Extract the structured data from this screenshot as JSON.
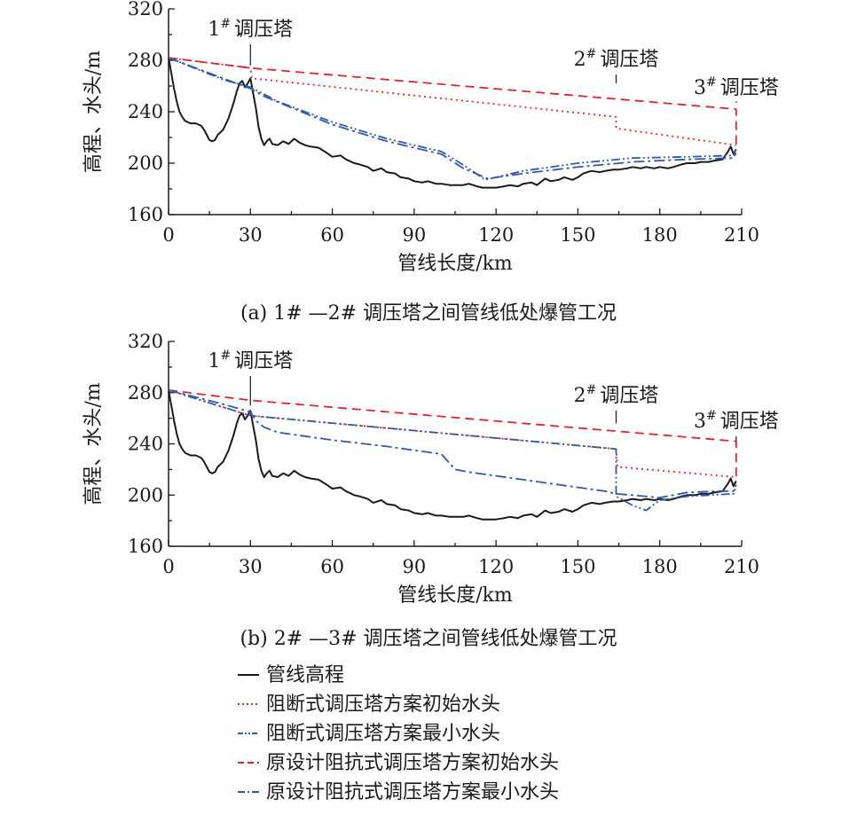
{
  "colors": {
    "elevation": "#1a1a1a",
    "red": "#e8212a",
    "blue": "#2f5aa8"
  },
  "chart_data": [
    {
      "type": "line",
      "caption": "(a) 1# —2# 调压塔之间管线低处爆管工况",
      "xlabel": "管线长度/km",
      "ylabel": "高程、水头/m",
      "xlim": [
        0,
        210
      ],
      "ylim": [
        160,
        320
      ],
      "xticks": [
        "0",
        "30",
        "60",
        "90",
        "120",
        "150",
        "180",
        "210"
      ],
      "yticks": [
        "160",
        "200",
        "240",
        "280",
        "320"
      ],
      "annotations": [
        {
          "text": "1# 调压塔",
          "num": "1",
          "label": "调压塔",
          "x": 30
        },
        {
          "text": "2# 调压塔",
          "num": "2",
          "label": "调压塔",
          "x": 164
        },
        {
          "text": "3# 调压塔",
          "num": "3",
          "label": "调压塔",
          "x": 208
        }
      ],
      "series": [
        {
          "key": "elevation",
          "style": "solid",
          "color": "#1a1a1a",
          "x": [
            0,
            1,
            2,
            3,
            4,
            5,
            6,
            8,
            10,
            12,
            13,
            14,
            15,
            16,
            17,
            18,
            20,
            22,
            24,
            25,
            26,
            27,
            28,
            29,
            30,
            31,
            32,
            33,
            34,
            35,
            36,
            37,
            38,
            40,
            42,
            44,
            46,
            48,
            50,
            52,
            55,
            58,
            60,
            63,
            65,
            68,
            70,
            73,
            75,
            78,
            80,
            83,
            85,
            88,
            90,
            93,
            95,
            98,
            100,
            103,
            105,
            108,
            110,
            113,
            115,
            118,
            120,
            123,
            125,
            128,
            130,
            133,
            135,
            138,
            140,
            143,
            145,
            148,
            150,
            152,
            155,
            158,
            160,
            163,
            165,
            168,
            170,
            173,
            175,
            178,
            180,
            183,
            185,
            188,
            190,
            193,
            195,
            198,
            200,
            203,
            205,
            206,
            207,
            208
          ],
          "y": [
            282,
            270,
            258,
            248,
            240,
            236,
            233,
            231,
            231,
            229,
            226,
            222,
            218,
            217,
            218,
            222,
            226,
            235,
            248,
            256,
            262,
            264,
            259,
            262,
            266,
            254,
            243,
            228,
            219,
            214,
            217,
            219,
            215,
            214,
            217,
            215,
            219,
            216,
            214,
            213,
            212,
            208,
            205,
            206,
            203,
            200,
            199,
            197,
            194,
            196,
            193,
            192,
            189,
            188,
            186,
            185,
            186,
            184,
            184,
            183,
            183,
            183,
            184,
            182,
            181,
            181,
            181,
            182,
            183,
            182,
            184,
            185,
            183,
            188,
            186,
            187,
            189,
            187,
            189,
            192,
            194,
            193,
            194,
            195,
            195,
            196,
            197,
            196,
            197,
            196,
            197,
            196,
            197,
            199,
            200,
            200,
            201,
            201,
            202,
            203,
            209,
            213,
            207,
            211
          ]
        },
        {
          "key": "blocking_initial",
          "style": "dotted",
          "color": "#e8212a",
          "x": [
            0,
            30,
            30.5,
            164,
            164,
            208
          ],
          "y": [
            282,
            274,
            266,
            236,
            227,
            214
          ]
        },
        {
          "key": "blocking_min",
          "style": "dashdotdot",
          "color": "#2f5aa8",
          "x": [
            0,
            20,
            30,
            32,
            40,
            60,
            80,
            100,
            110,
            116,
            130,
            150,
            170,
            190,
            207,
            208
          ],
          "y": [
            282,
            265,
            259,
            257,
            248,
            232,
            219,
            209,
            196,
            187,
            194,
            200,
            204,
            205,
            206,
            211
          ]
        },
        {
          "key": "original_initial",
          "style": "dashed",
          "color": "#e8212a",
          "x": [
            0,
            30,
            208,
            208
          ],
          "y": [
            282,
            274,
            242,
            212
          ]
        },
        {
          "key": "original_min",
          "style": "dashdot",
          "color": "#2f5aa8",
          "x": [
            0,
            20,
            30,
            35,
            60,
            80,
            100,
            108,
            117,
            130,
            150,
            170,
            190,
            207,
            208
          ],
          "y": [
            282,
            266,
            258,
            252,
            230,
            217,
            207,
            196,
            188,
            192,
            197,
            201,
            203,
            204,
            208
          ]
        }
      ]
    },
    {
      "type": "line",
      "caption": "(b) 2# —3# 调压塔之间管线低处爆管工况",
      "xlabel": "管线长度/km",
      "ylabel": "高程、水头/m",
      "xlim": [
        0,
        210
      ],
      "ylim": [
        160,
        320
      ],
      "xticks": [
        "0",
        "30",
        "60",
        "90",
        "120",
        "150",
        "180",
        "210"
      ],
      "yticks": [
        "160",
        "200",
        "240",
        "280",
        "320"
      ],
      "annotations": [
        {
          "text": "1# 调压塔",
          "num": "1",
          "label": "调压塔",
          "x": 30
        },
        {
          "text": "2# 调压塔",
          "num": "2",
          "label": "调压塔",
          "x": 164
        },
        {
          "text": "3# 调压塔",
          "num": "3",
          "label": "调压塔",
          "x": 208
        }
      ],
      "series": [
        {
          "key": "elevation",
          "style": "solid",
          "color": "#1a1a1a",
          "x": [
            0,
            1,
            2,
            3,
            4,
            5,
            6,
            8,
            10,
            12,
            13,
            14,
            15,
            16,
            17,
            18,
            20,
            22,
            24,
            25,
            26,
            27,
            28,
            29,
            30,
            31,
            32,
            33,
            34,
            35,
            36,
            37,
            38,
            40,
            42,
            44,
            46,
            48,
            50,
            52,
            55,
            58,
            60,
            63,
            65,
            68,
            70,
            73,
            75,
            78,
            80,
            83,
            85,
            88,
            90,
            93,
            95,
            98,
            100,
            103,
            105,
            108,
            110,
            113,
            115,
            118,
            120,
            123,
            125,
            128,
            130,
            133,
            135,
            138,
            140,
            143,
            145,
            148,
            150,
            152,
            155,
            158,
            160,
            163,
            165,
            168,
            170,
            173,
            175,
            178,
            180,
            183,
            185,
            188,
            190,
            193,
            195,
            198,
            200,
            203,
            205,
            206,
            207,
            208
          ],
          "y": [
            282,
            270,
            258,
            248,
            240,
            236,
            233,
            231,
            231,
            229,
            226,
            222,
            218,
            217,
            218,
            222,
            226,
            235,
            248,
            256,
            262,
            264,
            259,
            262,
            266,
            254,
            243,
            228,
            219,
            214,
            217,
            219,
            215,
            214,
            217,
            215,
            219,
            216,
            214,
            213,
            212,
            208,
            205,
            206,
            203,
            200,
            199,
            197,
            194,
            196,
            193,
            192,
            189,
            188,
            186,
            185,
            186,
            184,
            184,
            183,
            183,
            183,
            184,
            182,
            181,
            181,
            181,
            182,
            183,
            182,
            184,
            185,
            183,
            188,
            186,
            187,
            189,
            187,
            189,
            192,
            194,
            193,
            194,
            195,
            195,
            196,
            197,
            196,
            197,
            196,
            197,
            196,
            197,
            199,
            200,
            200,
            201,
            201,
            202,
            203,
            209,
            213,
            207,
            211
          ]
        },
        {
          "key": "blocking_initial",
          "style": "dotted",
          "color": "#e8212a",
          "x": [
            0,
            30,
            164,
            164.5,
            208
          ],
          "y": [
            282,
            262,
            236,
            222,
            214
          ]
        },
        {
          "key": "blocking_min",
          "style": "dashdotdot",
          "color": "#2f5aa8",
          "x": [
            0,
            30,
            164,
            164,
            170,
            175,
            180,
            190,
            207,
            208
          ],
          "y": [
            282,
            262,
            236,
            199,
            192,
            188,
            196,
            199,
            201,
            207
          ]
        },
        {
          "key": "original_initial",
          "style": "dashed",
          "color": "#e8212a",
          "x": [
            0,
            30,
            208,
            208
          ],
          "y": [
            282,
            274,
            242,
            210
          ]
        },
        {
          "key": "original_min",
          "style": "dashdot",
          "color": "#2f5aa8",
          "x": [
            0,
            20,
            30,
            32,
            35,
            40,
            60,
            80,
            100,
            105,
            110,
            130,
            150,
            160,
            164,
            170,
            180,
            190,
            200,
            207,
            208
          ],
          "y": [
            282,
            271,
            265,
            258,
            253,
            249,
            243,
            238,
            232,
            220,
            218,
            212,
            206,
            203,
            201,
            200,
            198,
            202,
            203,
            203,
            208
          ]
        }
      ]
    }
  ],
  "legend": [
    {
      "key": "elevation",
      "label": "管线高程",
      "style": "solid",
      "color": "#1a1a1a"
    },
    {
      "key": "blocking_initial",
      "label": "阻断式调压塔方案初始水头",
      "style": "dotted",
      "color": "#e8212a"
    },
    {
      "key": "blocking_min",
      "label": "阻断式调压塔方案最小水头",
      "style": "dashdotdot",
      "color": "#2f5aa8"
    },
    {
      "key": "original_initial",
      "label": "原设计阻抗式调压塔方案初始水头",
      "style": "dashed",
      "color": "#e8212a"
    },
    {
      "key": "original_min",
      "label": "原设计阻抗式调压塔方案最小水头",
      "style": "dashdot",
      "color": "#2f5aa8"
    }
  ]
}
